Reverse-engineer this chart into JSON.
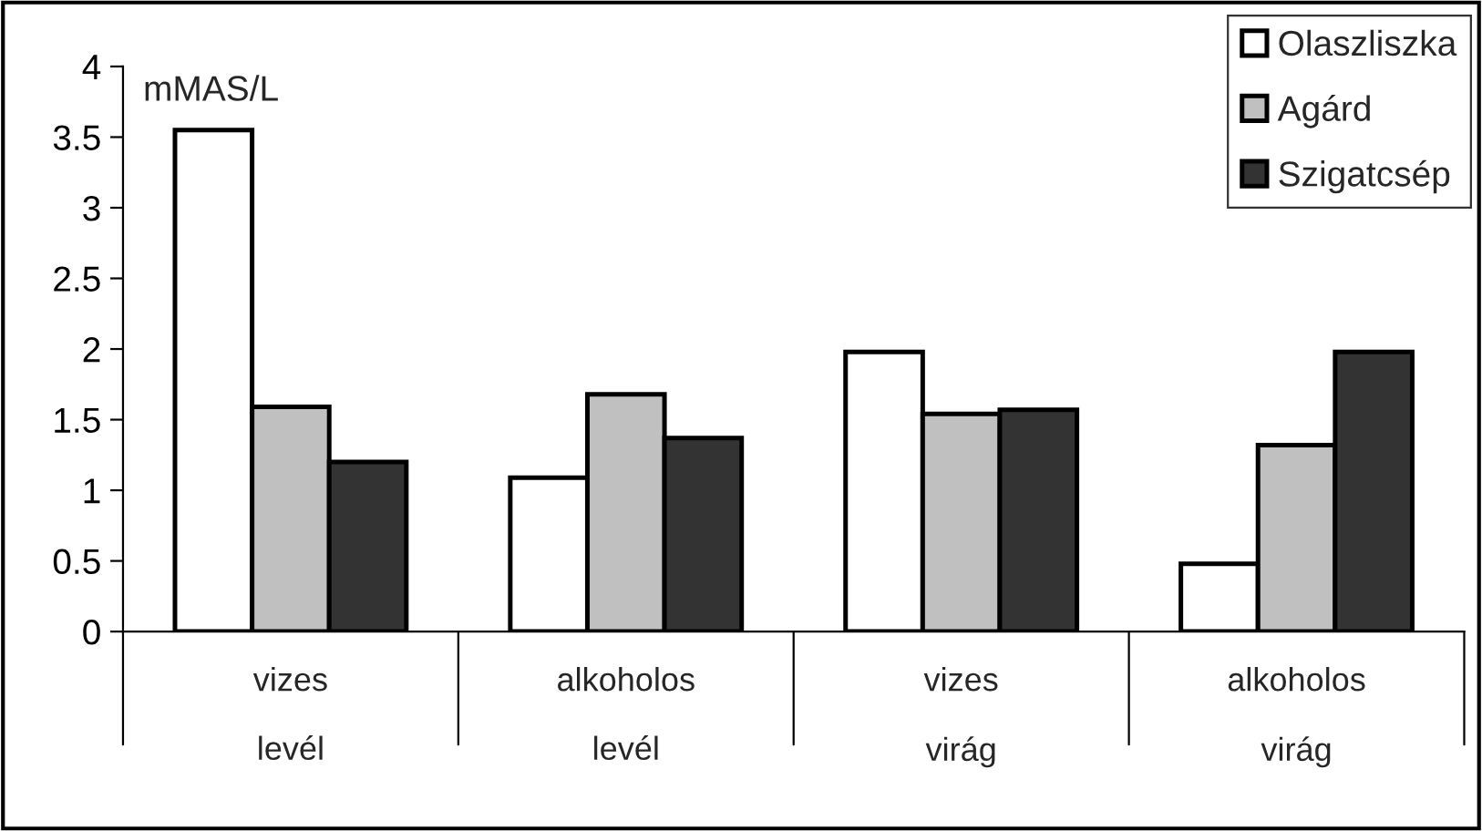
{
  "chart_data": {
    "type": "bar",
    "ylabel": "mMAS/L",
    "categories": [
      "vizes\nlevél",
      "alkoholos\nlevél",
      "vizes\nvirág",
      "alkoholos\nvirág"
    ],
    "series": [
      {
        "name": "Olaszliszka",
        "color": "#ffffff",
        "values": [
          3.55,
          1.09,
          1.98,
          0.48
        ]
      },
      {
        "name": "Agárd",
        "color": "#c0c0c0",
        "values": [
          1.59,
          1.68,
          1.54,
          1.32
        ]
      },
      {
        "name": "Szigatcsép",
        "color": "#333333",
        "values": [
          1.2,
          1.37,
          1.57,
          1.98
        ]
      }
    ],
    "ylim": [
      0,
      4
    ],
    "yticks": [
      0,
      0.5,
      1,
      1.5,
      2,
      2.5,
      3,
      3.5,
      4
    ],
    "grid": false,
    "legend": "top right"
  }
}
